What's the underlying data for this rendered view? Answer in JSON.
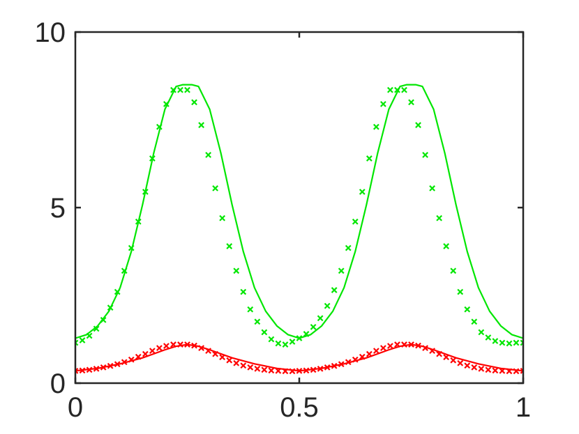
{
  "chart_data": {
    "type": "line",
    "title": "",
    "xlabel": "",
    "ylabel": "",
    "xlim": [
      0,
      1
    ],
    "ylim": [
      0,
      10
    ],
    "x_ticks": [
      "0",
      "0.5",
      "1"
    ],
    "y_ticks": [
      "0",
      "5",
      "10"
    ],
    "grid": false,
    "box": true,
    "series": [
      {
        "style": "line",
        "color": "#00e600",
        "x": [
          0,
          0.025,
          0.05,
          0.075,
          0.1,
          0.125,
          0.15,
          0.175,
          0.2,
          0.225,
          0.24,
          0.26,
          0.275,
          0.3,
          0.325,
          0.35,
          0.375,
          0.4,
          0.425,
          0.45,
          0.475,
          0.5,
          0.525,
          0.55,
          0.575,
          0.6,
          0.625,
          0.65,
          0.675,
          0.7,
          0.725,
          0.74,
          0.76,
          0.775,
          0.8,
          0.825,
          0.85,
          0.875,
          0.9,
          0.925,
          0.95,
          0.975,
          1
        ],
        "y": [
          1.28,
          1.38,
          1.63,
          2.05,
          2.72,
          3.75,
          5.08,
          6.55,
          7.8,
          8.45,
          8.5,
          8.5,
          8.45,
          7.8,
          6.55,
          5.08,
          3.75,
          2.72,
          2.05,
          1.63,
          1.38,
          1.28,
          1.38,
          1.63,
          2.05,
          2.72,
          3.75,
          5.08,
          6.55,
          7.8,
          8.45,
          8.5,
          8.5,
          8.45,
          7.8,
          6.55,
          5.08,
          3.75,
          2.72,
          2.05,
          1.63,
          1.38,
          1.28
        ]
      },
      {
        "style": "markers",
        "marker": "x",
        "color": "#00e600",
        "x": [
          0,
          0.0156,
          0.0313,
          0.0469,
          0.0625,
          0.0781,
          0.0938,
          0.1094,
          0.125,
          0.1406,
          0.1563,
          0.1719,
          0.1875,
          0.2031,
          0.2188,
          0.2344,
          0.25,
          0.2656,
          0.2813,
          0.2969,
          0.3125,
          0.3281,
          0.3438,
          0.3594,
          0.375,
          0.3906,
          0.4063,
          0.4219,
          0.4375,
          0.4531,
          0.4688,
          0.4844,
          0.5,
          0.5156,
          0.5313,
          0.5469,
          0.5625,
          0.5781,
          0.5938,
          0.6094,
          0.625,
          0.6406,
          0.6563,
          0.6719,
          0.6875,
          0.7031,
          0.7188,
          0.7344,
          0.75,
          0.7656,
          0.7813,
          0.7969,
          0.8125,
          0.8281,
          0.8438,
          0.8594,
          0.875,
          0.8906,
          0.9063,
          0.9219,
          0.9375,
          0.9531,
          0.9688,
          0.9844,
          1
        ],
        "y": [
          1.15,
          1.22,
          1.35,
          1.55,
          1.8,
          2.15,
          2.6,
          3.2,
          3.85,
          4.6,
          5.45,
          6.4,
          7.3,
          7.95,
          8.35,
          8.35,
          8.35,
          8.0,
          7.35,
          6.5,
          5.55,
          4.7,
          3.9,
          3.2,
          2.6,
          2.1,
          1.75,
          1.45,
          1.25,
          1.13,
          1.1,
          1.18,
          1.28,
          1.4,
          1.6,
          1.85,
          2.2,
          2.65,
          3.2,
          3.85,
          4.6,
          5.45,
          6.4,
          7.3,
          7.95,
          8.35,
          8.35,
          8.35,
          8.0,
          7.35,
          6.5,
          5.55,
          4.7,
          3.9,
          3.2,
          2.6,
          2.1,
          1.75,
          1.45,
          1.3,
          1.2,
          1.15,
          1.13,
          1.15,
          1.15
        ]
      },
      {
        "style": "line",
        "color": "#ff0000",
        "x": [
          0,
          0.05,
          0.1,
          0.15,
          0.2,
          0.225,
          0.25,
          0.275,
          0.3,
          0.35,
          0.4,
          0.45,
          0.5,
          0.55,
          0.6,
          0.65,
          0.7,
          0.725,
          0.75,
          0.775,
          0.8,
          0.85,
          0.9,
          0.95,
          1
        ],
        "y": [
          0.35,
          0.42,
          0.55,
          0.72,
          0.95,
          1.05,
          1.1,
          1.05,
          0.95,
          0.72,
          0.55,
          0.42,
          0.35,
          0.42,
          0.55,
          0.72,
          0.95,
          1.05,
          1.1,
          1.05,
          0.95,
          0.72,
          0.55,
          0.42,
          0.35
        ]
      },
      {
        "style": "markers",
        "marker": "x",
        "color": "#ff0000",
        "x": [
          0,
          0.0156,
          0.0313,
          0.0469,
          0.0625,
          0.0781,
          0.0938,
          0.1094,
          0.125,
          0.1406,
          0.1563,
          0.1719,
          0.1875,
          0.2031,
          0.2188,
          0.2344,
          0.25,
          0.2656,
          0.2813,
          0.2969,
          0.3125,
          0.3281,
          0.3438,
          0.3594,
          0.375,
          0.3906,
          0.4063,
          0.4219,
          0.4375,
          0.4531,
          0.4688,
          0.4844,
          0.5,
          0.5156,
          0.5313,
          0.5469,
          0.5625,
          0.5781,
          0.5938,
          0.6094,
          0.625,
          0.6406,
          0.6563,
          0.6719,
          0.6875,
          0.7031,
          0.7188,
          0.7344,
          0.75,
          0.7656,
          0.7813,
          0.7969,
          0.8125,
          0.8281,
          0.8438,
          0.8594,
          0.875,
          0.8906,
          0.9063,
          0.9219,
          0.9375,
          0.9531,
          0.9688,
          0.9844,
          1
        ],
        "y": [
          0.35,
          0.36,
          0.38,
          0.41,
          0.45,
          0.49,
          0.54,
          0.6,
          0.67,
          0.75,
          0.83,
          0.92,
          1.0,
          1.06,
          1.1,
          1.1,
          1.1,
          1.07,
          1.0,
          0.92,
          0.83,
          0.74,
          0.65,
          0.57,
          0.5,
          0.45,
          0.41,
          0.38,
          0.36,
          0.35,
          0.34,
          0.34,
          0.35,
          0.36,
          0.38,
          0.41,
          0.45,
          0.49,
          0.54,
          0.6,
          0.67,
          0.75,
          0.83,
          0.92,
          1.0,
          1.06,
          1.1,
          1.1,
          1.1,
          1.07,
          1.0,
          0.92,
          0.83,
          0.74,
          0.65,
          0.57,
          0.5,
          0.45,
          0.41,
          0.38,
          0.36,
          0.35,
          0.34,
          0.34,
          0.35
        ]
      }
    ]
  }
}
